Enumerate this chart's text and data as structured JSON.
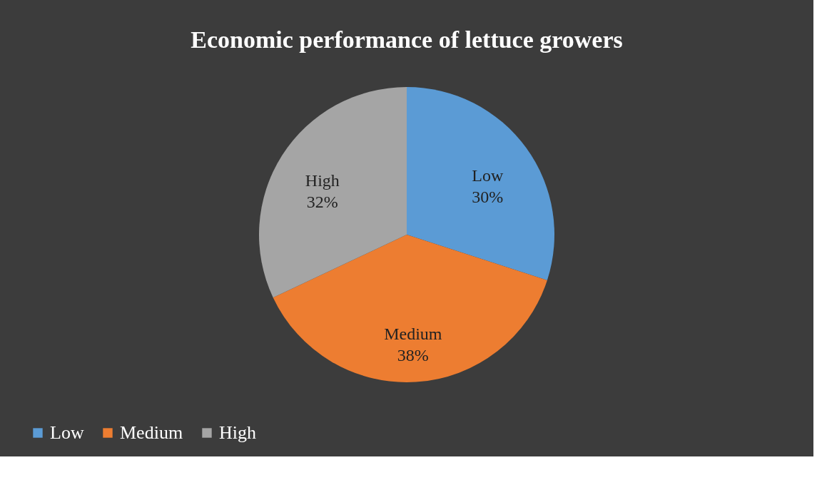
{
  "chart_data": {
    "type": "pie",
    "title": "Economic performance of lettuce growers",
    "categories": [
      "Low",
      "Medium",
      "High"
    ],
    "values": [
      30,
      38,
      32
    ],
    "colors": [
      "#5b9bd5",
      "#ed7d31",
      "#a5a5a5"
    ],
    "value_labels": [
      "30%",
      "38%",
      "32%"
    ],
    "legend": "bottom"
  }
}
